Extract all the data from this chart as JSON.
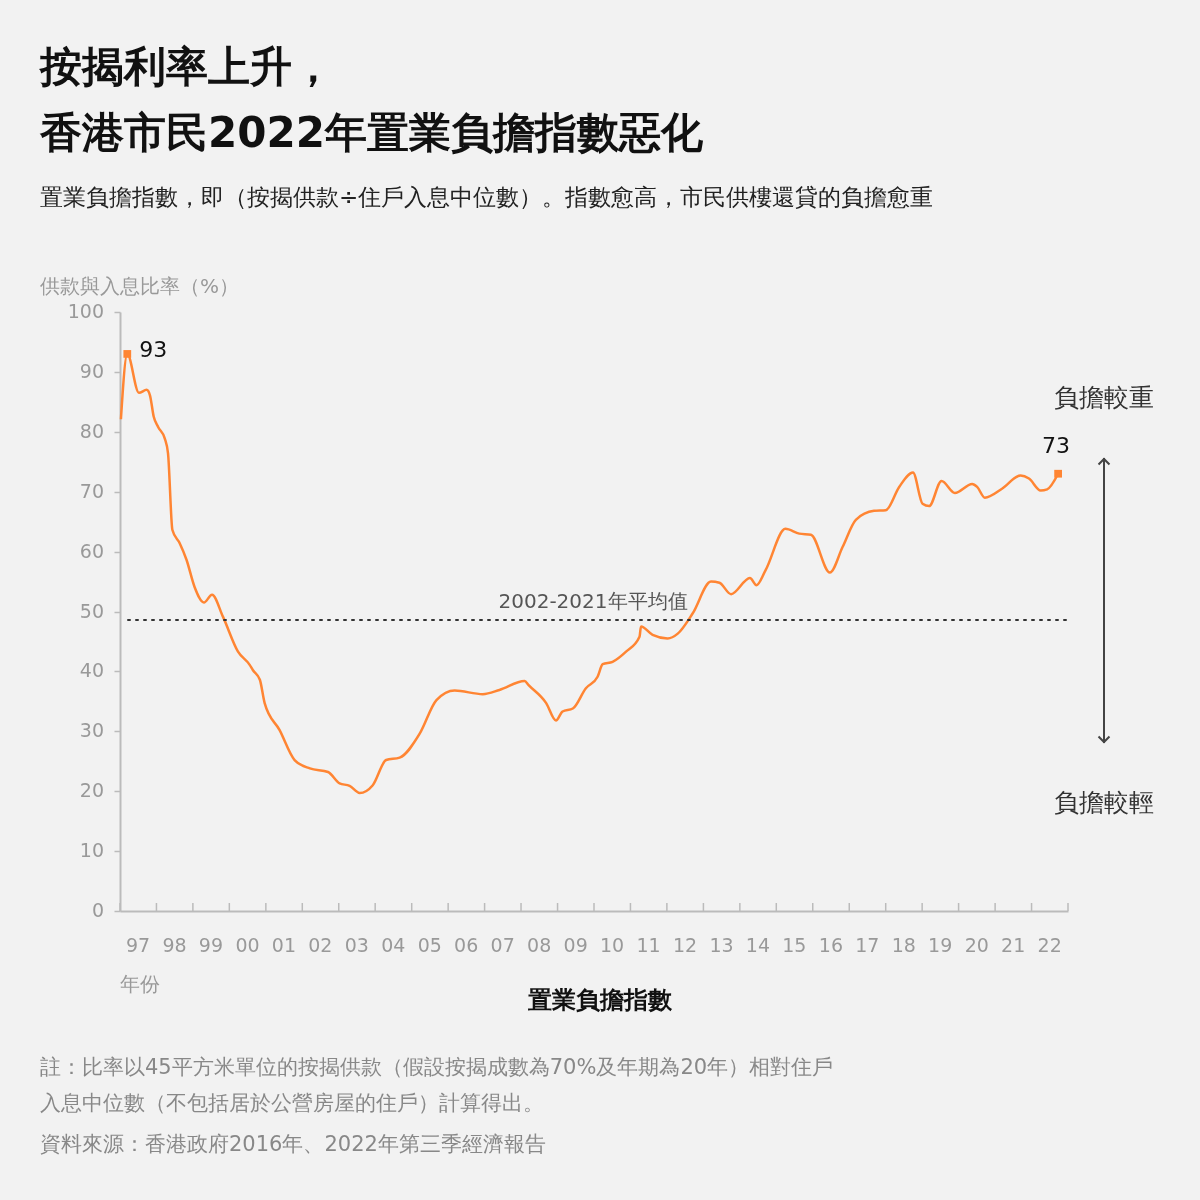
{
  "chart_data": {
    "type": "line",
    "title": "按揭利率上升，香港市民2022年置業負擔指數惡化",
    "subtitle": "置業負擔指數，即（按揭供款÷住戶入息中位數）。指數愈高，市民供樓還貸的負擔愈重",
    "xlabel": "年份",
    "ylabel": "供款與入息比率（%）",
    "xlim": [
      "1997-01-01",
      "2023-01-01"
    ],
    "xticks": [
      {
        "value": "1997-01-01",
        "label": null
      },
      {
        "value": "1997-07-01",
        "label": "97"
      },
      {
        "value": "1998-01-01",
        "label": null
      },
      {
        "value": "1998-07-01",
        "label": "98"
      },
      {
        "value": "1999-01-01",
        "label": null
      },
      {
        "value": "1999-07-01",
        "label": "99"
      },
      {
        "value": "2000-01-01",
        "label": null
      },
      {
        "value": "2000-07-01",
        "label": "00"
      },
      {
        "value": "2001-01-01",
        "label": null
      },
      {
        "value": "2001-07-01",
        "label": "01"
      },
      {
        "value": "2002-01-01",
        "label": null
      },
      {
        "value": "2002-07-01",
        "label": "02"
      },
      {
        "value": "2003-01-01",
        "label": null
      },
      {
        "value": "2003-07-01",
        "label": "03"
      },
      {
        "value": "2004-01-01",
        "label": null
      },
      {
        "value": "2004-07-01",
        "label": "04"
      },
      {
        "value": "2005-01-01",
        "label": null
      },
      {
        "value": "2005-07-01",
        "label": "05"
      },
      {
        "value": "2006-01-01",
        "label": null
      },
      {
        "value": "2006-07-01",
        "label": "06"
      },
      {
        "value": "2007-01-01",
        "label": null
      },
      {
        "value": "2007-07-01",
        "label": "07"
      },
      {
        "value": "2008-01-01",
        "label": null
      },
      {
        "value": "2008-07-01",
        "label": "08"
      },
      {
        "value": "2009-01-01",
        "label": null
      },
      {
        "value": "2009-07-01",
        "label": "09"
      },
      {
        "value": "2010-01-01",
        "label": null
      },
      {
        "value": "2010-07-01",
        "label": "10"
      },
      {
        "value": "2011-01-01",
        "label": null
      },
      {
        "value": "2011-07-01",
        "label": "11"
      },
      {
        "value": "2012-01-01",
        "label": null
      },
      {
        "value": "2012-07-01",
        "label": "12"
      },
      {
        "value": "2013-01-01",
        "label": null
      },
      {
        "value": "2013-07-01",
        "label": "13"
      },
      {
        "value": "2014-01-01",
        "label": null
      },
      {
        "value": "2014-07-01",
        "label": "14"
      },
      {
        "value": "2015-01-01",
        "label": null
      },
      {
        "value": "2015-07-01",
        "label": "15"
      },
      {
        "value": "2016-01-01",
        "label": null
      },
      {
        "value": "2016-07-01",
        "label": "16"
      },
      {
        "value": "2017-01-01",
        "label": null
      },
      {
        "value": "2017-07-01",
        "label": "17"
      },
      {
        "value": "2018-01-01",
        "label": null
      },
      {
        "value": "2018-07-01",
        "label": "18"
      },
      {
        "value": "2019-01-01",
        "label": null
      },
      {
        "value": "2019-07-01",
        "label": "19"
      },
      {
        "value": "2020-01-01",
        "label": null
      },
      {
        "value": "2020-07-01",
        "label": "20"
      },
      {
        "value": "2021-01-01",
        "label": null
      },
      {
        "value": "2021-07-01",
        "label": "21"
      },
      {
        "value": "2022-01-01",
        "label": null
      },
      {
        "value": "2022-07-01",
        "label": "22"
      },
      {
        "value": "2023-01-01",
        "label": null
      }
    ],
    "ylim": [
      0,
      100
    ],
    "yticks": [
      0,
      10,
      20,
      30,
      40,
      50,
      60,
      70,
      80,
      90,
      100
    ],
    "grid": false,
    "series": [
      {
        "color": "#ff8533",
        "marker": "none",
        "x": [
          "1997-01-10",
          "1997-03-15",
          "1997-07-10",
          "1997-09-25",
          "1997-10-28",
          "1997-12-05",
          "1998-01-18",
          "1998-03-25",
          "1998-04-27",
          "1998-06-10",
          "1998-08-22",
          "1998-10-30",
          "1999-01-18",
          "1999-04-22",
          "1999-07-12",
          "1999-10-30",
          "2000-03-28",
          "2000-07-23",
          "2000-08-25",
          "2000-11-02",
          "2000-12-20",
          "2001-05-19",
          "2001-10-16",
          "2002-03-18",
          "2002-09-16",
          "2003-01-10",
          "2003-04-20",
          "2003-07-30",
          "2003-12-08",
          "2004-04-20",
          "2004-09-02",
          "2005-03-22",
          "2005-09-06",
          "2006-03-07",
          "2006-12-14",
          "2007-05-30",
          "2008-02-06",
          "2008-03-17",
          "2008-09-09",
          "2008-12-16",
          "2009-02-20",
          "2009-06-03",
          "2009-10-12",
          "2010-02-06",
          "2010-03-29",
          "2010-07-06",
          "2010-11-18",
          "2011-04-02",
          "2011-04-17",
          "2011-08-11",
          "2012-01-08",
          "2012-04-19",
          "2012-09-16",
          "2013-03-18",
          "2013-06-10",
          "2013-10-05",
          "2014-04-12",
          "2014-06-17",
          "2014-09-16",
          "2015-04-02",
          "2015-08-19",
          "2015-12-14",
          "2016-06-21",
          "2016-10-27",
          "2017-03-08",
          "2017-09-06",
          "2018-01-01",
          "2018-05-16",
          "2018-10-01",
          "2019-01-05",
          "2019-03-12",
          "2019-07-14",
          "2019-11-25",
          "2020-05-16",
          "2020-07-05",
          "2020-09-20",
          "2021-03-11",
          "2021-09-13",
          "2021-12-06",
          "2022-04-02",
          "2022-06-06",
          "2022-09-24"
        ],
        "values": [
          82.1,
          93,
          86.5,
          87.0,
          86.1,
          82.5,
          80.8,
          78.9,
          76.4,
          63.6,
          61.4,
          58.6,
          54.1,
          51.5,
          52.8,
          49.1,
          43.3,
          41.1,
          40.2,
          38.6,
          34.7,
          30.2,
          25.2,
          23.8,
          23.2,
          21.3,
          20.9,
          19.7,
          21.0,
          25.2,
          25.6,
          29.6,
          35.2,
          36.8,
          36.2,
          36.9,
          38.4,
          37.7,
          34.7,
          31.8,
          33.3,
          33.8,
          37.2,
          39.1,
          41.2,
          41.6,
          43.3,
          45.8,
          47.5,
          46.1,
          45.5,
          46.3,
          49.7,
          55.0,
          54.8,
          52.9,
          55.6,
          54.4,
          56.9,
          63.8,
          63.0,
          62.8,
          56.5,
          60.8,
          65.3,
          66.8,
          66.9,
          70.8,
          73.2,
          68.0,
          67.6,
          71.8,
          69.8,
          71.3,
          70.8,
          69.0,
          70.5,
          72.7,
          72.2,
          70.2,
          70.4,
          73
        ]
      },
      {
        "type": "scatter",
        "color": "#ff8533",
        "marker": "square",
        "x": [
          "1997-03-15",
          "2022-09-24"
        ],
        "values": [
          93,
          73
        ],
        "value_labels": [
          "93",
          "73"
        ]
      }
    ],
    "ref_lines": [
      {
        "axis": "y",
        "value": 48.6,
        "label": "2002-2021年平均值",
        "color": "#333333",
        "line_style": "dotted"
      }
    ],
    "annotations": [
      "置業負擔指數",
      "負擔較重",
      "負擔較輕",
      "註：比率以45平方米單位的按揭供款（假設按揭成數為70%及年期為20年）相對住戶入息中位數（不包括居於公營房屋的住戶）計算得出。",
      "資料來源：香港政府2016年、2022年第三季經濟報告"
    ]
  }
}
